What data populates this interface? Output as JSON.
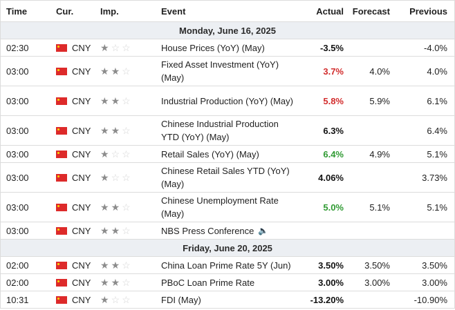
{
  "header": {
    "time": "Time",
    "cur": "Cur.",
    "imp": "Imp.",
    "event": "Event",
    "actual": "Actual",
    "forecast": "Forecast",
    "previous": "Previous"
  },
  "days": [
    {
      "label": "Monday, June 16, 2025",
      "rows": [
        {
          "time": "02:30",
          "cur": "CNY",
          "stars": 1,
          "event": "House Prices (YoY) (May)",
          "actual": "-3.5%",
          "actual_color": "black",
          "forecast": "",
          "previous": "-4.0%"
        },
        {
          "time": "03:00",
          "cur": "CNY",
          "stars": 2,
          "event": "Fixed Asset Investment (YoY) (May)",
          "actual": "3.7%",
          "actual_color": "red",
          "forecast": "4.0%",
          "previous": "4.0%"
        },
        {
          "time": "03:00",
          "cur": "CNY",
          "stars": 2,
          "event": "Industrial Production (YoY) (May)",
          "actual": "5.8%",
          "actual_color": "red",
          "forecast": "5.9%",
          "previous": "6.1%"
        },
        {
          "time": "03:00",
          "cur": "CNY",
          "stars": 2,
          "event": "Chinese Industrial Production YTD (YoY) (May)",
          "actual": "6.3%",
          "actual_color": "black",
          "forecast": "",
          "previous": "6.4%"
        },
        {
          "time": "03:00",
          "cur": "CNY",
          "stars": 1,
          "event": "Retail Sales (YoY) (May)",
          "actual": "6.4%",
          "actual_color": "green",
          "forecast": "4.9%",
          "previous": "5.1%"
        },
        {
          "time": "03:00",
          "cur": "CNY",
          "stars": 1,
          "event": "Chinese Retail Sales YTD (YoY) (May)",
          "actual": "4.06%",
          "actual_color": "black",
          "forecast": "",
          "previous": "3.73%"
        },
        {
          "time": "03:00",
          "cur": "CNY",
          "stars": 2,
          "event": "Chinese Unemployment Rate (May)",
          "actual": "5.0%",
          "actual_color": "green",
          "forecast": "5.1%",
          "previous": "5.1%"
        },
        {
          "time": "03:00",
          "cur": "CNY",
          "stars": 2,
          "event": "NBS Press Conference",
          "actual": "",
          "actual_color": "black",
          "forecast": "",
          "previous": "",
          "speaker": true
        }
      ]
    },
    {
      "label": "Friday, June 20, 2025",
      "rows": [
        {
          "time": "02:00",
          "cur": "CNY",
          "stars": 2,
          "event": "China Loan Prime Rate 5Y (Jun)",
          "actual": "3.50%",
          "actual_color": "black",
          "forecast": "3.50%",
          "previous": "3.50%"
        },
        {
          "time": "02:00",
          "cur": "CNY",
          "stars": 2,
          "event": "PBoC Loan Prime Rate",
          "actual": "3.00%",
          "actual_color": "black",
          "forecast": "3.00%",
          "previous": "3.00%"
        },
        {
          "time": "10:31",
          "cur": "CNY",
          "stars": 1,
          "event": "FDI (May)",
          "actual": "-13.20%",
          "actual_color": "black",
          "forecast": "",
          "previous": "-10.90%"
        }
      ]
    }
  ]
}
